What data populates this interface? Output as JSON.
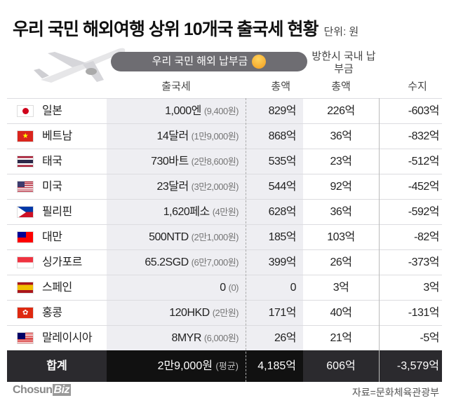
{
  "title": "우리 국민 해외여행 상위 10개국 출국세 현황",
  "unit": "단위: 원",
  "header": {
    "group_label": "우리 국민 해외 납부금",
    "inbound_label": "방한시 국내 납부금",
    "col_tax": "출국세",
    "col_total": "총액",
    "col_inbound_total": "총액",
    "col_balance": "수지"
  },
  "rows": [
    {
      "flag": "japan",
      "country": "일본",
      "tax": "1,000엔",
      "tax_krw": "(9,400원)",
      "total": "829억",
      "inbound": "226억",
      "balance": "-603억"
    },
    {
      "flag": "vietnam",
      "country": "베트남",
      "tax": "14달러",
      "tax_krw": "(1만9,000원)",
      "total": "868억",
      "inbound": "36억",
      "balance": "-832억"
    },
    {
      "flag": "thailand",
      "country": "태국",
      "tax": "730바트",
      "tax_krw": "(2만8,600원)",
      "total": "535억",
      "inbound": "23억",
      "balance": "-512억"
    },
    {
      "flag": "usa",
      "country": "미국",
      "tax": "23달러",
      "tax_krw": "(3만2,000원)",
      "total": "544억",
      "inbound": "92억",
      "balance": "-452억"
    },
    {
      "flag": "philippines",
      "country": "필리핀",
      "tax": "1,620페소",
      "tax_krw": "(4만원)",
      "total": "628억",
      "inbound": "36억",
      "balance": "-592억"
    },
    {
      "flag": "taiwan",
      "country": "대만",
      "tax": "500NTD",
      "tax_krw": "(2만1,000원)",
      "total": "185억",
      "inbound": "103억",
      "balance": "-82억"
    },
    {
      "flag": "singapore",
      "country": "싱가포르",
      "tax": "65.2SGD",
      "tax_krw": "(6만7,000원)",
      "total": "399억",
      "inbound": "26억",
      "balance": "-373억"
    },
    {
      "flag": "spain",
      "country": "스페인",
      "tax": "0",
      "tax_krw": "(0)",
      "total": "0",
      "inbound": "3억",
      "balance": "3억"
    },
    {
      "flag": "hongkong",
      "country": "홍콩",
      "tax": "120HKD",
      "tax_krw": "(2만원)",
      "total": "171억",
      "inbound": "40억",
      "balance": "-131억"
    },
    {
      "flag": "malaysia",
      "country": "말레이시아",
      "tax": "8MYR",
      "tax_krw": "(6,000원)",
      "total": "26억",
      "inbound": "21억",
      "balance": "-5억"
    }
  ],
  "sum": {
    "label": "합계",
    "tax": "2만9,000원",
    "tax_note": "(평균)",
    "total": "4,185억",
    "inbound": "606억",
    "balance": "-3,579억"
  },
  "footer": {
    "logo_a": "Chosun",
    "logo_b": "Biz",
    "source": "자료=문화체육관광부"
  }
}
